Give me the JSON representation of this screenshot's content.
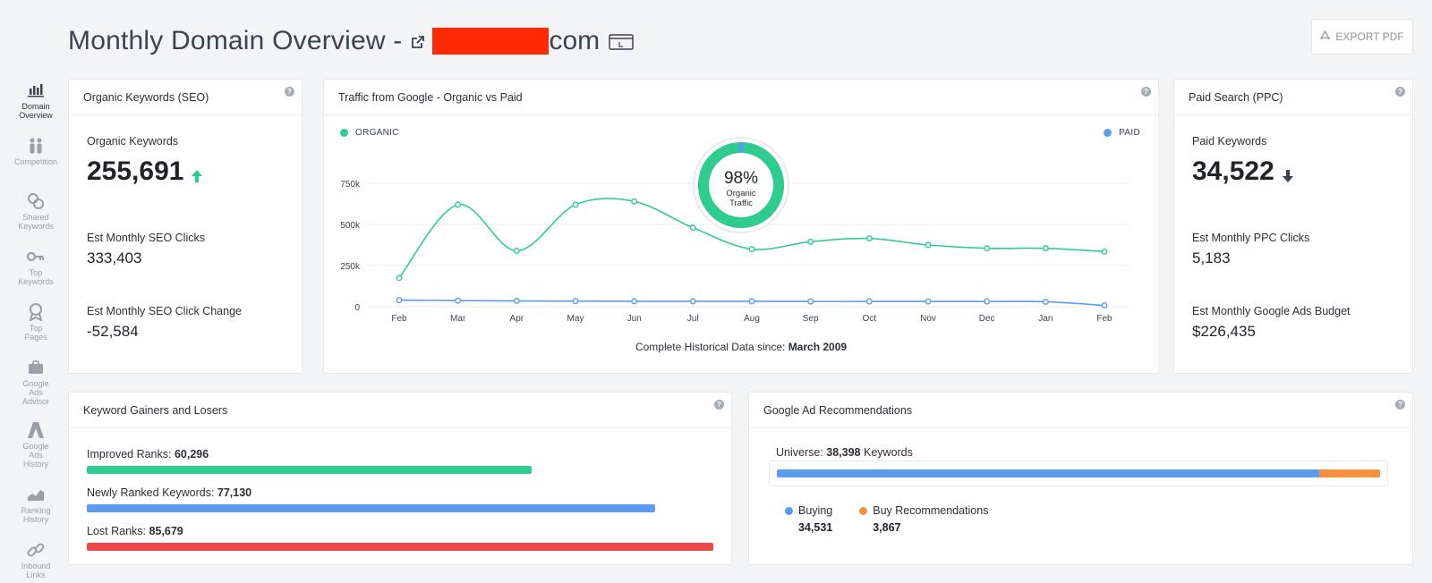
{
  "page": {
    "title": "Monthly Domain Overview -",
    "domain_suffix": "com",
    "export_label": "EXPORT PDF"
  },
  "sidebar": {
    "items": [
      {
        "label": "Domain\nOverview",
        "icon": "bar-chart-icon",
        "active": true
      },
      {
        "label": "Competition",
        "icon": "competition-icon"
      },
      {
        "label": "Shared\nKeywords",
        "icon": "shared-keywords-icon"
      },
      {
        "label": "Top\nKeywords",
        "icon": "key-icon"
      },
      {
        "label": "Top\nPages",
        "icon": "award-icon"
      },
      {
        "label": "Google\nAds\nAdvisor",
        "icon": "briefcase-icon"
      },
      {
        "label": "Google\nAds\nHistory",
        "icon": "ads-history-icon"
      },
      {
        "label": "Ranking\nHistory",
        "icon": "area-chart-icon"
      },
      {
        "label": "Inbound\nLinks",
        "icon": "link-icon"
      }
    ]
  },
  "seo": {
    "title": "Organic Keywords (SEO)",
    "keywords_label": "Organic Keywords",
    "keywords_value": "255,691",
    "trend": "up",
    "clicks_label": "Est Monthly SEO Clicks",
    "clicks_value": "333,403",
    "change_label": "Est Monthly SEO Click Change",
    "change_value": "-52,584"
  },
  "traffic": {
    "title": "Traffic from Google - Organic vs Paid",
    "organic_legend": "ORGANIC",
    "paid_legend": "PAID",
    "donut_pct": "98%",
    "donut_caption_1": "Organic",
    "donut_caption_2": "Traffic",
    "donut_fraction": 0.98,
    "footer_prefix": "Complete Historical Data since:",
    "footer_date": "March 2009"
  },
  "chart_data": {
    "type": "line",
    "x": [
      "Feb",
      "Mar",
      "Apr",
      "May",
      "Jun",
      "Jul",
      "Aug",
      "Sep",
      "Oct",
      "Nov",
      "Dec",
      "Jan",
      "Feb"
    ],
    "y_ticks": [
      "0",
      "250k",
      "500k",
      "750k"
    ],
    "y_tick_values": [
      0,
      250000,
      500000,
      750000
    ],
    "ylim": [
      0,
      750000
    ],
    "series": [
      {
        "name": "ORGANIC",
        "color": "#2ecc8f",
        "values": [
          175000,
          620000,
          340000,
          620000,
          640000,
          480000,
          350000,
          395000,
          415000,
          375000,
          355000,
          355000,
          335000
        ]
      },
      {
        "name": "PAID",
        "color": "#5b9cf0",
        "values": [
          40000,
          37000,
          35000,
          34000,
          33000,
          33000,
          33000,
          32000,
          32000,
          32000,
          32000,
          30000,
          8000
        ]
      }
    ],
    "grid": true
  },
  "ppc": {
    "title": "Paid Search (PPC)",
    "keywords_label": "Paid Keywords",
    "keywords_value": "34,522",
    "trend": "down",
    "clicks_label": "Est Monthly PPC Clicks",
    "clicks_value": "5,183",
    "budget_label": "Est Monthly Google Ads Budget",
    "budget_value": "$226,435"
  },
  "gainers": {
    "title": "Keyword Gainers and Losers",
    "rows": [
      {
        "label": "Improved Ranks:",
        "value": "60,296",
        "fraction": 0.71,
        "color": "#2ecc8f"
      },
      {
        "label": "Newly Ranked Keywords:",
        "value": "77,130",
        "fraction": 0.907,
        "color": "#5b9cf0"
      },
      {
        "label": "Lost Ranks:",
        "value": "85,679",
        "fraction": 1.0,
        "color": "#f04848"
      }
    ]
  },
  "ads": {
    "title": "Google Ad Recommendations",
    "universe_label": "Universe:",
    "universe_value": "38,398",
    "universe_suffix": "Keywords",
    "buying_label": "Buying",
    "buying_value": "34,531",
    "buying_color": "#5b9cf0",
    "buy_rec_label": "Buy Recommendations",
    "buy_rec_value": "3,867",
    "buy_rec_color": "#f5913e",
    "buying_fraction": 0.899
  }
}
